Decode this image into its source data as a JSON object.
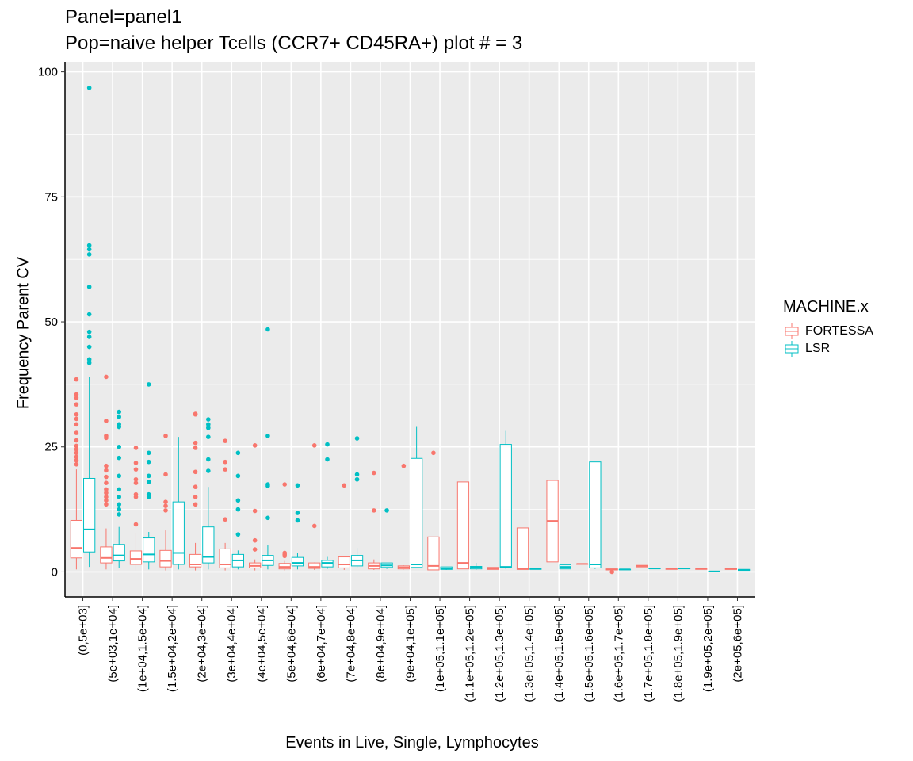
{
  "chart_data": {
    "type": "box",
    "title": "Panel=panel1",
    "subtitle": "Pop=naive helper Tcells (CCR7+ CD45RA+) plot # = 3",
    "xlabel": "Events in Live, Single, Lymphocytes",
    "ylabel": "Frequency Parent CV",
    "ylim": [
      -5,
      102
    ],
    "yticks": [
      0,
      25,
      50,
      75,
      100
    ],
    "grid": true,
    "legend": {
      "title": "MACHINE.x",
      "position": "right"
    },
    "categories": [
      "(0,5e+03]",
      "(5e+03,1e+04]",
      "(1e+04,1.5e+04]",
      "(1.5e+04,2e+04]",
      "(2e+04,3e+04]",
      "(3e+04,4e+04]",
      "(4e+04,5e+04]",
      "(5e+04,6e+04]",
      "(6e+04,7e+04]",
      "(7e+04,8e+04]",
      "(8e+04,9e+04]",
      "(9e+04,1e+05]",
      "(1e+05,1.1e+05]",
      "(1.1e+05,1.2e+05]",
      "(1.2e+05,1.3e+05]",
      "(1.3e+05,1.4e+05]",
      "(1.4e+05,1.5e+05]",
      "(1.5e+05,1.6e+05]",
      "(1.6e+05,1.7e+05]",
      "(1.7e+05,1.8e+05]",
      "(1.8e+05,1.9e+05]",
      "(1.9e+05,2e+05]",
      "(2e+05,6e+05]"
    ],
    "series": [
      {
        "name": "FORTESSA",
        "color": "#F8766D",
        "boxes": [
          {
            "category": "(0,5e+03]",
            "min": 0.5,
            "q1": 2.8,
            "median": 4.8,
            "q3": 10.3,
            "max": 20.5,
            "outliers": [
              21.5,
              22.3,
              23.0,
              23.8,
              24.5,
              25.2,
              26.3,
              27.8,
              29.5,
              30.6,
              31.5,
              33.5,
              34.8,
              35.5,
              38.5
            ]
          },
          {
            "category": "(5e+03,1e+04]",
            "min": 0.5,
            "q1": 1.8,
            "median": 2.8,
            "q3": 5.0,
            "max": 8.7,
            "outliers": [
              13.5,
              14.3,
              15.0,
              15.8,
              16.5,
              17.8,
              19.0,
              20.3,
              21.2,
              26.8,
              27.2,
              30.2,
              39.0
            ]
          },
          {
            "category": "(1e+04,1.5e+04]",
            "min": 0.3,
            "q1": 1.5,
            "median": 2.6,
            "q3": 4.2,
            "max": 7.8,
            "outliers": [
              9.5,
              15.0,
              15.5,
              17.8,
              18.5,
              20.5,
              21.8,
              24.8
            ]
          },
          {
            "category": "(1.5e+04,2e+04]",
            "min": 0.3,
            "q1": 1.0,
            "median": 2.2,
            "q3": 4.3,
            "max": 8.3,
            "outliers": [
              12.3,
              13.2,
              14.0,
              19.5,
              27.2
            ]
          },
          {
            "category": "(2e+04,3e+04]",
            "min": 0.3,
            "q1": 1.0,
            "median": 1.5,
            "q3": 3.5,
            "max": 5.8,
            "outliers": [
              13.5,
              15.0,
              17.0,
              20.0,
              24.8,
              25.8,
              31.5,
              31.6
            ]
          },
          {
            "category": "(3e+04,4e+04]",
            "min": 0.3,
            "q1": 0.8,
            "median": 1.5,
            "q3": 4.6,
            "max": 5.8,
            "outliers": [
              10.5,
              20.5,
              22.0,
              26.2
            ]
          },
          {
            "category": "(4e+04,5e+04]",
            "min": 0.3,
            "q1": 0.8,
            "median": 1.2,
            "q3": 1.8,
            "max": 2.5,
            "outliers": [
              4.5,
              6.3,
              12.2,
              25.3
            ]
          },
          {
            "category": "(5e+04,6e+04]",
            "min": 0.3,
            "q1": 0.6,
            "median": 1.0,
            "q3": 1.7,
            "max": 2.2,
            "outliers": [
              3.2,
              3.5,
              3.8,
              17.5
            ]
          },
          {
            "category": "(6e+04,7e+04]",
            "min": 0.4,
            "q1": 0.7,
            "median": 1.0,
            "q3": 1.8,
            "max": 1.9,
            "outliers": [
              9.2,
              25.3
            ]
          },
          {
            "category": "(7e+04,8e+04]",
            "min": 0.4,
            "q1": 0.8,
            "median": 1.5,
            "q3": 3.0,
            "max": 3.0,
            "outliers": [
              17.3
            ]
          },
          {
            "category": "(8e+04,9e+04]",
            "min": 0.4,
            "q1": 0.6,
            "median": 1.2,
            "q3": 1.8,
            "max": 2.5,
            "outliers": [
              12.3,
              19.8
            ]
          },
          {
            "category": "(9e+04,1e+05]",
            "min": 0.5,
            "q1": 0.6,
            "median": 0.9,
            "q3": 1.2,
            "max": 1.3,
            "outliers": [
              21.2
            ]
          },
          {
            "category": "(1e+05,1.1e+05]",
            "min": 0.4,
            "q1": 0.4,
            "median": 1.2,
            "q3": 7.0,
            "max": 7.0,
            "outliers": [
              23.8
            ]
          },
          {
            "category": "(1.1e+05,1.2e+05]",
            "min": 0.6,
            "q1": 0.6,
            "median": 1.8,
            "q3": 18.0,
            "max": 18.0,
            "outliers": []
          },
          {
            "category": "(1.2e+05,1.3e+05]",
            "min": 0.5,
            "q1": 0.5,
            "median": 0.7,
            "q3": 0.9,
            "max": 0.9,
            "outliers": []
          },
          {
            "category": "(1.3e+05,1.4e+05]",
            "min": 0.5,
            "q1": 0.5,
            "median": 0.6,
            "q3": 8.8,
            "max": 8.8,
            "outliers": []
          },
          {
            "category": "(1.4e+05,1.5e+05]",
            "min": 2.0,
            "q1": 2.0,
            "median": 10.2,
            "q3": 18.3,
            "max": 18.3,
            "outliers": []
          },
          {
            "category": "(1.5e+05,1.6e+05]",
            "min": 1.6,
            "q1": 1.6,
            "median": 1.6,
            "q3": 1.6,
            "max": 1.6,
            "outliers": []
          },
          {
            "category": "(1.6e+05,1.7e+05]",
            "min": 0.3,
            "q1": 0.4,
            "median": 0.5,
            "q3": 0.6,
            "max": 0.6,
            "outliers": [
              0.0
            ]
          },
          {
            "category": "(1.7e+05,1.8e+05]",
            "min": 1.0,
            "q1": 1.0,
            "median": 1.2,
            "q3": 1.3,
            "max": 1.3,
            "outliers": []
          },
          {
            "category": "(1.8e+05,1.9e+05]",
            "min": 0.6,
            "q1": 0.6,
            "median": 0.6,
            "q3": 0.6,
            "max": 0.6,
            "outliers": []
          },
          {
            "category": "(1.9e+05,2e+05]",
            "min": 0.6,
            "q1": 0.6,
            "median": 0.6,
            "q3": 0.6,
            "max": 0.6,
            "outliers": []
          },
          {
            "category": "(2e+05,6e+05]",
            "min": 0.5,
            "q1": 0.5,
            "median": 0.6,
            "q3": 0.7,
            "max": 0.7,
            "outliers": []
          }
        ]
      },
      {
        "name": "LSR",
        "color": "#00BFC4",
        "boxes": [
          {
            "category": "(0,5e+03]",
            "min": 1.0,
            "q1": 4.0,
            "median": 8.5,
            "q3": 18.7,
            "max": 39.0,
            "outliers": [
              41.8,
              42.5,
              45.0,
              47.0,
              48.0,
              51.5,
              57.0,
              63.5,
              64.5,
              65.3,
              96.8
            ]
          },
          {
            "category": "(5e+03,1e+04]",
            "min": 0.8,
            "q1": 2.2,
            "median": 3.3,
            "q3": 5.5,
            "max": 9.0,
            "outliers": [
              11.5,
              12.5,
              13.5,
              15.0,
              16.5,
              19.2,
              22.8,
              25.0,
              29.0,
              29.5,
              31.0,
              32.0
            ]
          },
          {
            "category": "(1e+04,1.5e+04]",
            "min": 0.5,
            "q1": 2.0,
            "median": 3.5,
            "q3": 6.8,
            "max": 8.0,
            "outliers": [
              15.0,
              15.5,
              18.0,
              19.2,
              22.0,
              23.8,
              37.5
            ]
          },
          {
            "category": "(1.5e+04,2e+04]",
            "min": 0.5,
            "q1": 1.5,
            "median": 3.8,
            "q3": 14.0,
            "max": 27.0,
            "outliers": []
          },
          {
            "category": "(2e+04,3e+04]",
            "min": 0.5,
            "q1": 1.8,
            "median": 3.0,
            "q3": 9.0,
            "max": 17.0,
            "outliers": [
              20.2,
              22.5,
              27.0,
              28.8,
              29.5,
              30.5
            ]
          },
          {
            "category": "(3e+04,4e+04]",
            "min": 0.5,
            "q1": 1.0,
            "median": 2.3,
            "q3": 3.5,
            "max": 4.3,
            "outliers": [
              7.5,
              12.5,
              14.3,
              19.2,
              23.8
            ]
          },
          {
            "category": "(4e+04,5e+04]",
            "min": 0.5,
            "q1": 1.3,
            "median": 2.3,
            "q3": 3.3,
            "max": 5.3,
            "outliers": [
              10.8,
              17.2,
              17.5,
              27.2,
              48.5
            ]
          },
          {
            "category": "(5e+04,6e+04]",
            "min": 0.5,
            "q1": 1.2,
            "median": 1.8,
            "q3": 2.9,
            "max": 3.8,
            "outliers": [
              10.3,
              11.8,
              17.3
            ]
          },
          {
            "category": "(6e+04,7e+04]",
            "min": 0.6,
            "q1": 1.0,
            "median": 1.8,
            "q3": 2.3,
            "max": 3.0,
            "outliers": [
              22.5,
              25.5
            ]
          },
          {
            "category": "(7e+04,8e+04]",
            "min": 0.7,
            "q1": 1.2,
            "median": 2.3,
            "q3": 3.3,
            "max": 4.8,
            "outliers": [
              18.5,
              19.5,
              26.7
            ]
          },
          {
            "category": "(8e+04,9e+04]",
            "min": 0.6,
            "q1": 0.9,
            "median": 1.3,
            "q3": 1.8,
            "max": 1.8,
            "outliers": [
              12.3
            ]
          },
          {
            "category": "(9e+04,1e+05]",
            "min": 0.8,
            "q1": 0.9,
            "median": 1.5,
            "q3": 22.7,
            "max": 29.0,
            "outliers": []
          },
          {
            "category": "(1e+05,1.1e+05]",
            "min": 0.4,
            "q1": 0.5,
            "median": 0.7,
            "q3": 1.0,
            "max": 1.0,
            "outliers": []
          },
          {
            "category": "(1.1e+05,1.2e+05]",
            "min": 0.4,
            "q1": 0.6,
            "median": 0.9,
            "q3": 1.1,
            "max": 1.8,
            "outliers": []
          },
          {
            "category": "(1.2e+05,1.3e+05]",
            "min": 0.6,
            "q1": 0.8,
            "median": 1.0,
            "q3": 25.5,
            "max": 28.2,
            "outliers": []
          },
          {
            "category": "(1.3e+05,1.4e+05]",
            "min": 0.6,
            "q1": 0.6,
            "median": 0.6,
            "q3": 0.6,
            "max": 0.6,
            "outliers": []
          },
          {
            "category": "(1.4e+05,1.5e+05]",
            "min": 0.6,
            "q1": 0.6,
            "median": 1.0,
            "q3": 1.4,
            "max": 1.4,
            "outliers": []
          },
          {
            "category": "(1.5e+05,1.6e+05]",
            "min": 0.6,
            "q1": 0.8,
            "median": 1.5,
            "q3": 22.0,
            "max": 22.0,
            "outliers": []
          },
          {
            "category": "(1.6e+05,1.7e+05]",
            "min": 0.5,
            "q1": 0.5,
            "median": 0.5,
            "q3": 0.5,
            "max": 0.5,
            "outliers": []
          },
          {
            "category": "(1.7e+05,1.8e+05]",
            "min": 0.7,
            "q1": 0.7,
            "median": 0.7,
            "q3": 0.7,
            "max": 0.7,
            "outliers": []
          },
          {
            "category": "(1.8e+05,1.9e+05]",
            "min": 0.7,
            "q1": 0.7,
            "median": 0.7,
            "q3": 0.7,
            "max": 0.7,
            "outliers": []
          },
          {
            "category": "(1.9e+05,2e+05]",
            "min": 0.1,
            "q1": 0.1,
            "median": 0.1,
            "q3": 0.1,
            "max": 0.1,
            "outliers": []
          },
          {
            "category": "(2e+05,6e+05]",
            "min": 0.3,
            "q1": 0.3,
            "median": 0.4,
            "q3": 0.5,
            "max": 0.5,
            "outliers": []
          }
        ]
      }
    ]
  }
}
